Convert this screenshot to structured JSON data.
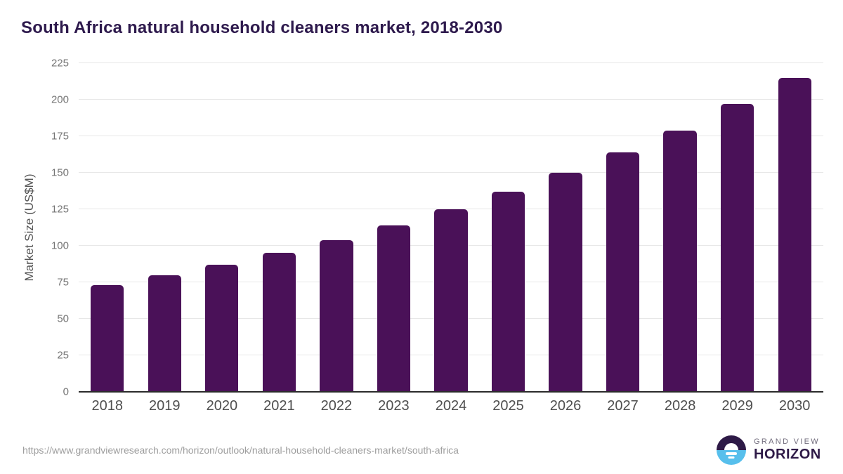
{
  "chart_data": {
    "type": "bar",
    "title": "South Africa natural household cleaners market, 2018-2030",
    "categories": [
      "2018",
      "2019",
      "2020",
      "2021",
      "2022",
      "2023",
      "2024",
      "2025",
      "2026",
      "2027",
      "2028",
      "2029",
      "2030"
    ],
    "values": [
      73,
      80,
      87,
      95,
      104,
      114,
      125,
      137,
      150,
      164,
      179,
      197,
      215
    ],
    "xlabel": "",
    "ylabel": "Market Size (US$M)",
    "ylim": [
      0,
      225
    ],
    "yticks": [
      0,
      25,
      50,
      75,
      100,
      125,
      150,
      175,
      200,
      225
    ],
    "grid": true,
    "legend": "none",
    "bar_color": "#4A1158"
  },
  "footer": {
    "source_url": "https://www.grandviewresearch.com/horizon/outlook/natural-household-cleaners-market/south-africa",
    "logo_top": "GRAND VIEW",
    "logo_bottom": "HORIZON"
  },
  "colors": {
    "title": "#2E1A4D",
    "axis_line": "#2B2B2B",
    "gridline": "#E7E7E7",
    "tick_text": "#757575",
    "x_label_text": "#4F4F4F",
    "logo_purple": "#2E1A47",
    "logo_blue": "#57BFEC"
  }
}
